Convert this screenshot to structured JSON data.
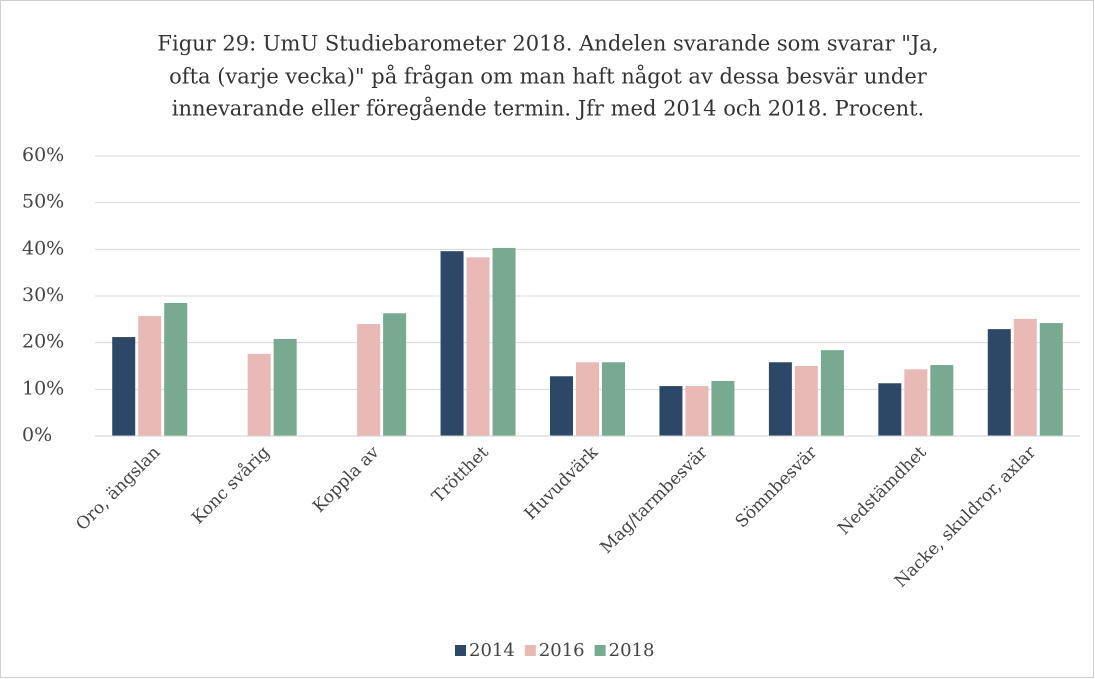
{
  "chart_data": {
    "type": "bar",
    "title": [
      "Figur 29: UmU Studiebarometer 2018. Andelen svarande som svarar \"Ja,",
      "ofta (varje vecka)\" på frågan om man haft något av dessa besvär under",
      "innevarande eller föregående termin. Jfr med 2014 och 2018. Procent."
    ],
    "categories": [
      "Oro, ängslan",
      "Konc svårig",
      "Koppla av",
      "Trötthet",
      "Huvudvärk",
      "Mag/tarmbesvär",
      "Sömnbesvär",
      "Nedstämdhet",
      "Nacke, skuldror, axlar"
    ],
    "series": [
      {
        "name": "2014",
        "color": "#2d4867",
        "values": [
          21.2,
          null,
          null,
          39.6,
          12.8,
          10.7,
          15.8,
          11.3,
          22.9
        ]
      },
      {
        "name": "2016",
        "color": "#e9b9b6",
        "values": [
          25.7,
          17.6,
          24.0,
          38.3,
          15.8,
          10.7,
          15.0,
          14.3,
          25.1
        ]
      },
      {
        "name": "2018",
        "color": "#78aa91",
        "values": [
          28.5,
          20.8,
          26.3,
          40.3,
          15.8,
          11.8,
          18.4,
          15.2,
          24.2
        ]
      }
    ],
    "ylim": [
      0,
      60
    ],
    "yticks": [
      {
        "value": 0,
        "label": "0%"
      },
      {
        "value": 10,
        "label": "10%"
      },
      {
        "value": 20,
        "label": "20%"
      },
      {
        "value": 30,
        "label": "30%"
      },
      {
        "value": 40,
        "label": "40%"
      },
      {
        "value": 50,
        "label": "50%"
      },
      {
        "value": 60,
        "label": "60%"
      }
    ],
    "grid": true,
    "legend": "bottom"
  }
}
